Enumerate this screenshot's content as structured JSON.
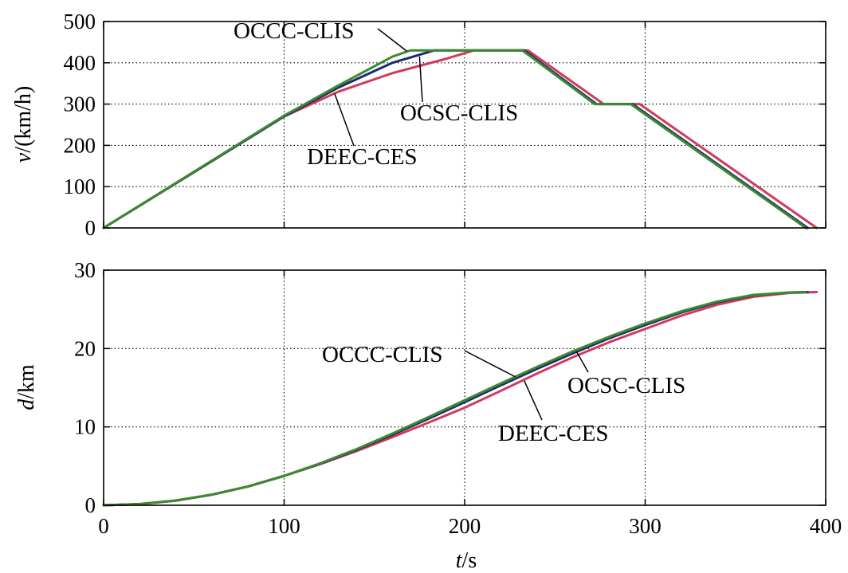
{
  "chart_data": [
    {
      "type": "line",
      "id": "speed",
      "ylabel_italic": "v",
      "ylabel_rest": "/(km/h)",
      "xlim": [
        0,
        400
      ],
      "ylim": [
        0,
        500
      ],
      "yticks": [
        "0",
        "100",
        "200",
        "300",
        "400",
        "500"
      ],
      "grid": true,
      "series": [
        {
          "name": "DEEC-CES",
          "color": "#d23a5a",
          "x": [
            0,
            100,
            130,
            160,
            190,
            205,
            235,
            277,
            297,
            395
          ],
          "y": [
            0,
            270,
            330,
            375,
            410,
            430,
            430,
            300,
            300,
            0
          ]
        },
        {
          "name": "OCSC-CLIS",
          "color": "#1c2b6e",
          "x": [
            0,
            100,
            130,
            160,
            183,
            233,
            273,
            293,
            390
          ],
          "y": [
            0,
            270,
            340,
            400,
            430,
            430,
            300,
            300,
            0
          ]
        },
        {
          "name": "OCCC-CLIS",
          "color": "#3c8a2e",
          "x": [
            0,
            100,
            130,
            160,
            170,
            232,
            272,
            292,
            389
          ],
          "y": [
            0,
            272,
            345,
            415,
            430,
            430,
            300,
            300,
            0
          ]
        }
      ],
      "annotations": [
        {
          "text": "OCCC-CLIS",
          "target_series": "OCCC-CLIS",
          "target": [
            168,
            428
          ]
        },
        {
          "text": "OCSC-CLIS",
          "target_series": "OCSC-CLIS",
          "target": [
            175,
            415
          ]
        },
        {
          "text": "DEEC-CES",
          "target_series": "DEEC-CES",
          "target": [
            128,
            325
          ]
        }
      ]
    },
    {
      "type": "line",
      "id": "distance",
      "ylabel_italic": "d",
      "ylabel_rest": "/km",
      "xlabel_italic": "t",
      "xlabel_rest": "/s",
      "xlim": [
        0,
        400
      ],
      "ylim": [
        0,
        30
      ],
      "xticks": [
        "0",
        "100",
        "200",
        "300",
        "400"
      ],
      "yticks": [
        "0",
        "10",
        "20",
        "30"
      ],
      "grid": true,
      "series": [
        {
          "name": "DEEC-CES",
          "color": "#d23a5a",
          "x": [
            0,
            20,
            40,
            60,
            80,
            100,
            120,
            140,
            160,
            180,
            200,
            220,
            240,
            260,
            280,
            300,
            320,
            340,
            360,
            380,
            395
          ],
          "y": [
            0,
            0.15,
            0.6,
            1.35,
            2.4,
            3.75,
            5.25,
            6.9,
            8.7,
            10.55,
            12.45,
            14.6,
            16.8,
            18.9,
            20.8,
            22.5,
            24.2,
            25.6,
            26.6,
            27.1,
            27.2
          ]
        },
        {
          "name": "OCSC-CLIS",
          "color": "#1c2b6e",
          "x": [
            0,
            20,
            40,
            60,
            80,
            100,
            120,
            140,
            160,
            180,
            200,
            220,
            240,
            260,
            280,
            300,
            320,
            340,
            360,
            380,
            390
          ],
          "y": [
            0,
            0.15,
            0.6,
            1.35,
            2.4,
            3.75,
            5.3,
            7.05,
            9.0,
            11.05,
            13.15,
            15.3,
            17.4,
            19.4,
            21.3,
            23.0,
            24.6,
            25.9,
            26.8,
            27.15,
            27.2
          ]
        },
        {
          "name": "OCCC-CLIS",
          "color": "#3c8a2e",
          "x": [
            0,
            20,
            40,
            60,
            80,
            100,
            120,
            140,
            160,
            180,
            200,
            220,
            240,
            260,
            280,
            300,
            320,
            340,
            360,
            380,
            389
          ],
          "y": [
            0,
            0.15,
            0.6,
            1.35,
            2.4,
            3.75,
            5.35,
            7.15,
            9.15,
            11.25,
            13.4,
            15.55,
            17.65,
            19.65,
            21.5,
            23.2,
            24.75,
            26.0,
            26.85,
            27.15,
            27.2
          ]
        }
      ],
      "annotations": [
        {
          "text": "OCCC-CLIS",
          "target_series": "OCCC-CLIS",
          "target": [
            228,
            16.4
          ]
        },
        {
          "text": "DEEC-CES",
          "target_series": "DEEC-CES",
          "target": [
            233,
            15.9
          ]
        },
        {
          "text": "OCSC-CLIS",
          "target_series": "OCSC-CLIS",
          "target": [
            262,
            19.6
          ]
        }
      ]
    }
  ]
}
